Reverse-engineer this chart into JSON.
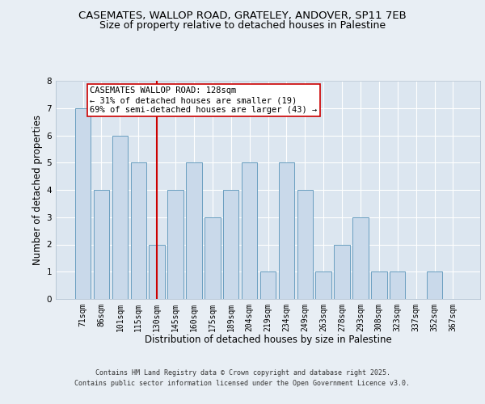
{
  "title_line1": "CASEMATES, WALLOP ROAD, GRATELEY, ANDOVER, SP11 7EB",
  "title_line2": "Size of property relative to detached houses in Palestine",
  "xlabel": "Distribution of detached houses by size in Palestine",
  "ylabel": "Number of detached properties",
  "categories": [
    "71sqm",
    "86sqm",
    "101sqm",
    "115sqm",
    "130sqm",
    "145sqm",
    "160sqm",
    "175sqm",
    "189sqm",
    "204sqm",
    "219sqm",
    "234sqm",
    "249sqm",
    "263sqm",
    "278sqm",
    "293sqm",
    "308sqm",
    "323sqm",
    "337sqm",
    "352sqm",
    "367sqm"
  ],
  "values": [
    7,
    4,
    6,
    5,
    2,
    4,
    5,
    3,
    4,
    5,
    1,
    5,
    4,
    1,
    2,
    3,
    1,
    1,
    0,
    1,
    0
  ],
  "bar_color": "#c9d9ea",
  "bar_edge_color": "#6a9fc0",
  "property_line_x": 4,
  "property_line_color": "#cc0000",
  "annotation_text": "CASEMATES WALLOP ROAD: 128sqm\n← 31% of detached houses are smaller (19)\n69% of semi-detached houses are larger (43) →",
  "annotation_box_color": "#ffffff",
  "annotation_box_edge": "#cc0000",
  "ylim": [
    0,
    8
  ],
  "yticks": [
    0,
    1,
    2,
    3,
    4,
    5,
    6,
    7,
    8
  ],
  "background_color": "#e8eef4",
  "plot_bg_color": "#dce6f0",
  "footer_line1": "Contains HM Land Registry data © Crown copyright and database right 2025.",
  "footer_line2": "Contains public sector information licensed under the Open Government Licence v3.0.",
  "title_fontsize": 9.5,
  "subtitle_fontsize": 9,
  "axis_label_fontsize": 8.5,
  "tick_fontsize": 7,
  "annotation_fontsize": 7.5,
  "footer_fontsize": 6
}
